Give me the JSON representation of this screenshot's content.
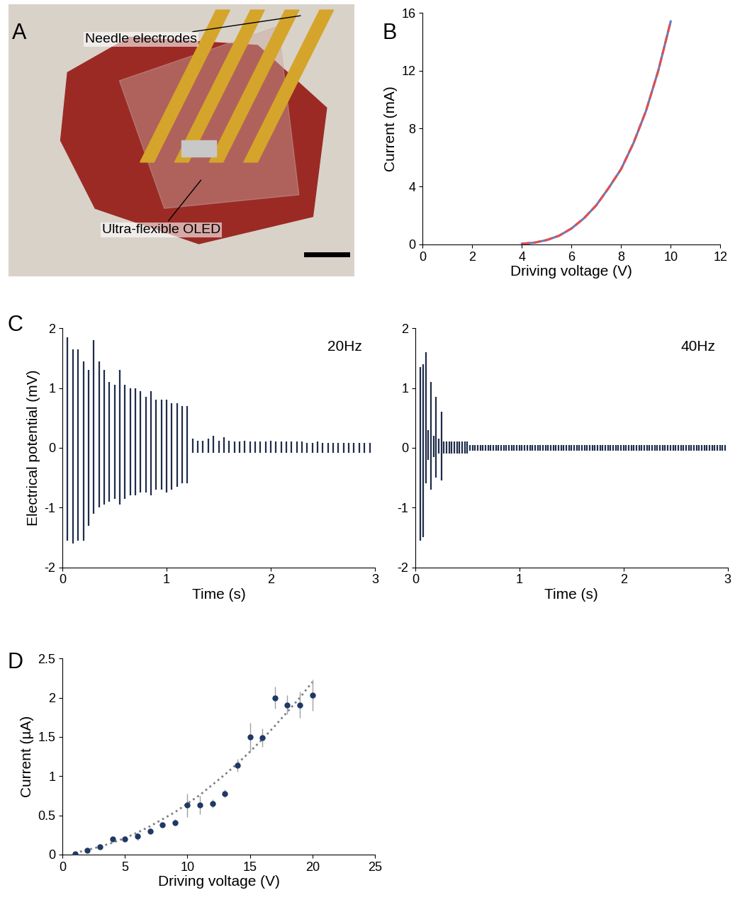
{
  "chart_data": [
    {
      "panel": "A",
      "type": "image",
      "annotations": [
        "Needle electrodes",
        "Ultra-flexible OLED"
      ]
    },
    {
      "panel": "B",
      "type": "line",
      "x": [
        4,
        4.5,
        5,
        5.5,
        6,
        6.5,
        7,
        7.5,
        8,
        8.5,
        9,
        9.5,
        10
      ],
      "series": [
        {
          "color": "#5b7fc7",
          "line_style": "solid",
          "values": [
            0.05,
            0.12,
            0.3,
            0.6,
            1.1,
            1.8,
            2.7,
            3.9,
            5.2,
            7.0,
            9.2,
            12.0,
            15.4
          ]
        },
        {
          "color": "#e05050",
          "line_style": "dashed",
          "values": [
            0.05,
            0.12,
            0.3,
            0.6,
            1.1,
            1.8,
            2.7,
            3.9,
            5.2,
            7.0,
            9.2,
            12.0,
            15.4
          ]
        }
      ],
      "x_label": "Driving voltage (V)",
      "y_label": "Current (mA)",
      "xlim": [
        0,
        12
      ],
      "xticks": [
        0,
        2,
        4,
        6,
        8,
        10,
        12
      ],
      "ylim": [
        0,
        16
      ],
      "yticks": [
        0,
        4,
        8,
        12,
        16
      ]
    },
    {
      "panel": "C",
      "type": "spikes",
      "title": "20Hz",
      "color": "#1f2d4a",
      "x_label": "Time (s)",
      "y_label": "Electrical potential (mV)",
      "xlim": [
        0,
        3
      ],
      "xticks": [
        0,
        1,
        2,
        3
      ],
      "ylim": [
        -2,
        2
      ],
      "yticks": [
        -2,
        -1,
        0,
        1,
        2
      ],
      "x": [
        0.05,
        0.1,
        0.15,
        0.2,
        0.25,
        0.3,
        0.35,
        0.4,
        0.45,
        0.5,
        0.55,
        0.6,
        0.65,
        0.7,
        0.75,
        0.8,
        0.85,
        0.9,
        0.95,
        1.0,
        1.05,
        1.1,
        1.15,
        1.2,
        1.25,
        1.3,
        1.35,
        1.4,
        1.45,
        1.5,
        1.55,
        1.6,
        1.65,
        1.7,
        1.75,
        1.8,
        1.85,
        1.9,
        1.95,
        2.0,
        2.05,
        2.1,
        2.15,
        2.2,
        2.25,
        2.3,
        2.35,
        2.4,
        2.45,
        2.5,
        2.55,
        2.6,
        2.65,
        2.7,
        2.75,
        2.8,
        2.85,
        2.9,
        2.95
      ],
      "peaks": [
        1.85,
        1.65,
        1.65,
        1.45,
        1.3,
        1.8,
        1.45,
        1.3,
        1.1,
        1.05,
        1.3,
        1.05,
        1.0,
        1.0,
        0.95,
        0.85,
        0.95,
        0.8,
        0.8,
        0.8,
        0.75,
        0.75,
        0.7,
        0.7,
        0.15,
        0.12,
        0.12,
        0.15,
        0.2,
        0.12,
        0.18,
        0.12,
        0.1,
        0.1,
        0.12,
        0.1,
        0.1,
        0.1,
        0.1,
        0.12,
        0.1,
        0.1,
        0.1,
        0.1,
        0.1,
        0.1,
        0.08,
        0.08,
        0.1,
        0.08,
        0.08,
        0.08,
        0.08,
        0.08,
        0.08,
        0.08,
        0.08,
        0.08,
        0.08
      ],
      "troughs": [
        -1.55,
        -1.6,
        -1.55,
        -1.55,
        -1.3,
        -1.1,
        -1.0,
        -0.95,
        -0.9,
        -0.85,
        -0.95,
        -0.85,
        -0.8,
        -0.8,
        -0.75,
        -0.75,
        -0.8,
        -0.7,
        -0.7,
        -0.75,
        -0.7,
        -0.65,
        -0.6,
        -0.6,
        -0.08,
        -0.08,
        -0.08,
        -0.08,
        -0.08,
        -0.08,
        -0.08,
        -0.08,
        -0.08,
        -0.08,
        -0.08,
        -0.08,
        -0.08,
        -0.08,
        -0.08,
        -0.08,
        -0.08,
        -0.08,
        -0.08,
        -0.08,
        -0.08,
        -0.08,
        -0.08,
        -0.08,
        -0.08,
        -0.08,
        -0.08,
        -0.08,
        -0.08,
        -0.08,
        -0.08,
        -0.08,
        -0.08,
        -0.08,
        -0.08
      ]
    },
    {
      "panel": "C",
      "type": "spikes",
      "title": "40Hz",
      "color": "#1f2d4a",
      "x_label": "Time (s)",
      "xlim": [
        0,
        3
      ],
      "xticks": [
        0,
        1,
        2,
        3
      ],
      "ylim": [
        -2,
        2
      ],
      "yticks": [
        -2,
        -1,
        0,
        1,
        2
      ],
      "x": [
        0.05,
        0.075,
        0.1,
        0.125,
        0.15,
        0.175,
        0.2,
        0.225,
        0.25,
        0.275,
        0.3,
        0.325,
        0.35,
        0.375,
        0.4,
        0.425,
        0.45,
        0.475,
        0.5,
        0.525,
        0.55,
        0.575,
        0.6,
        0.625,
        0.65,
        0.675,
        0.7,
        0.725,
        0.75,
        0.775,
        0.8,
        0.825,
        0.85,
        0.875,
        0.9,
        0.925,
        0.95,
        0.975,
        1.0,
        1.025,
        1.05,
        1.075,
        1.1,
        1.125,
        1.15,
        1.175,
        1.2,
        1.225,
        1.25,
        1.275,
        1.3,
        1.325,
        1.35,
        1.375,
        1.4,
        1.425,
        1.45,
        1.475,
        1.5,
        1.525,
        1.55,
        1.575,
        1.6,
        1.625,
        1.65,
        1.675,
        1.7,
        1.725,
        1.75,
        1.775,
        1.8,
        1.825,
        1.85,
        1.875,
        1.9,
        1.925,
        1.95,
        1.975,
        2.0,
        2.025,
        2.05,
        2.075,
        2.1,
        2.125,
        2.15,
        2.175,
        2.2,
        2.225,
        2.25,
        2.275,
        2.3,
        2.325,
        2.35,
        2.375,
        2.4,
        2.425,
        2.45,
        2.475,
        2.5,
        2.525,
        2.55,
        2.575,
        2.6,
        2.625,
        2.65,
        2.675,
        2.7,
        2.725,
        2.75,
        2.775,
        2.8,
        2.825,
        2.85,
        2.875,
        2.9,
        2.925,
        2.95,
        2.975
      ],
      "peaks": [
        1.35,
        1.4,
        1.6,
        0.3,
        1.1,
        0.2,
        0.85,
        0.15,
        0.6,
        0.1,
        0.1,
        0.1,
        0.1,
        0.1,
        0.1,
        0.1,
        0.1,
        0.1,
        0.1,
        0.05,
        0.05,
        0.05,
        0.05,
        0.05,
        0.05,
        0.05,
        0.05,
        0.05,
        0.05,
        0.05,
        0.05,
        0.05,
        0.05,
        0.05,
        0.05,
        0.05,
        0.05,
        0.05,
        0.05,
        0.05,
        0.05,
        0.05,
        0.05,
        0.05,
        0.05,
        0.05,
        0.05,
        0.05,
        0.05,
        0.05,
        0.05,
        0.05,
        0.05,
        0.05,
        0.05,
        0.05,
        0.05,
        0.05,
        0.05,
        0.05,
        0.05,
        0.05,
        0.05,
        0.05,
        0.05,
        0.05,
        0.05,
        0.05,
        0.05,
        0.05,
        0.05,
        0.05,
        0.05,
        0.05,
        0.05,
        0.05,
        0.05,
        0.05,
        0.05,
        0.05,
        0.05,
        0.05,
        0.05,
        0.05,
        0.05,
        0.05,
        0.05,
        0.05,
        0.05,
        0.05,
        0.05,
        0.05,
        0.05,
        0.05,
        0.05,
        0.05,
        0.05,
        0.05,
        0.05,
        0.05,
        0.05,
        0.05,
        0.05,
        0.05,
        0.05,
        0.05,
        0.05,
        0.05,
        0.05,
        0.05,
        0.05,
        0.05,
        0.05,
        0.05,
        0.05,
        0.05,
        0.05,
        0.05
      ],
      "troughs": [
        -1.55,
        -1.5,
        -0.6,
        -0.2,
        -0.7,
        -0.15,
        -0.5,
        -0.1,
        -0.55,
        -0.1,
        -0.1,
        -0.1,
        -0.1,
        -0.1,
        -0.1,
        -0.1,
        -0.1,
        -0.1,
        -0.1,
        -0.05,
        -0.05,
        -0.05,
        -0.05,
        -0.05,
        -0.05,
        -0.05,
        -0.05,
        -0.05,
        -0.05,
        -0.05,
        -0.05,
        -0.05,
        -0.05,
        -0.05,
        -0.05,
        -0.05,
        -0.05,
        -0.05,
        -0.05,
        -0.05,
        -0.05,
        -0.05,
        -0.05,
        -0.05,
        -0.05,
        -0.05,
        -0.05,
        -0.05,
        -0.05,
        -0.05,
        -0.05,
        -0.05,
        -0.05,
        -0.05,
        -0.05,
        -0.05,
        -0.05,
        -0.05,
        -0.05,
        -0.05,
        -0.05,
        -0.05,
        -0.05,
        -0.05,
        -0.05,
        -0.05,
        -0.05,
        -0.05,
        -0.05,
        -0.05,
        -0.05,
        -0.05,
        -0.05,
        -0.05,
        -0.05,
        -0.05,
        -0.05,
        -0.05,
        -0.05,
        -0.05,
        -0.05,
        -0.05,
        -0.05,
        -0.05,
        -0.05,
        -0.05,
        -0.05,
        -0.05,
        -0.05,
        -0.05,
        -0.05,
        -0.05,
        -0.05,
        -0.05,
        -0.05,
        -0.05,
        -0.05,
        -0.05,
        -0.05,
        -0.05,
        -0.05,
        -0.05,
        -0.05,
        -0.05,
        -0.05,
        -0.05,
        -0.05,
        -0.05,
        -0.05,
        -0.05,
        -0.05,
        -0.05,
        -0.05,
        -0.05,
        -0.05,
        -0.05,
        -0.05,
        -0.05
      ]
    },
    {
      "panel": "D",
      "type": "scatter",
      "x": [
        1,
        2,
        3,
        4,
        5,
        6,
        7,
        8,
        9,
        10,
        11,
        12,
        13,
        14,
        15,
        16,
        17,
        18,
        19,
        20
      ],
      "series": [
        {
          "type": "scatter",
          "marker": "o",
          "color": "#1f3864",
          "values": [
            0.01,
            0.05,
            0.1,
            0.2,
            0.2,
            0.23,
            0.3,
            0.38,
            0.41,
            0.63,
            0.63,
            0.65,
            0.78,
            1.14,
            1.5,
            1.49,
            2.0,
            1.91,
            1.91,
            2.03
          ],
          "errors": [
            0.01,
            0.01,
            0.02,
            0.02,
            0.03,
            0.05,
            0.03,
            0.03,
            0.04,
            0.15,
            0.12,
            0.05,
            0.05,
            0.08,
            0.18,
            0.12,
            0.14,
            0.12,
            0.17,
            0.2
          ]
        },
        {
          "type": "line",
          "line_style": "dotted",
          "color": "#7f7f7f",
          "values": [
            0.02,
            0.06,
            0.1,
            0.15,
            0.21,
            0.28,
            0.36,
            0.45,
            0.54,
            0.65,
            0.76,
            0.89,
            1.02,
            1.16,
            1.31,
            1.47,
            1.64,
            1.82,
            2.0,
            2.2
          ]
        }
      ],
      "x_label": "Driving voltage (V)",
      "y_label": "Current (µA)",
      "xlim": [
        0,
        25
      ],
      "xticks": [
        0,
        5,
        10,
        15,
        20,
        25
      ],
      "ylim": [
        0,
        2.5
      ],
      "yticks": [
        0,
        0.5,
        1,
        1.5,
        2,
        2.5
      ]
    }
  ]
}
